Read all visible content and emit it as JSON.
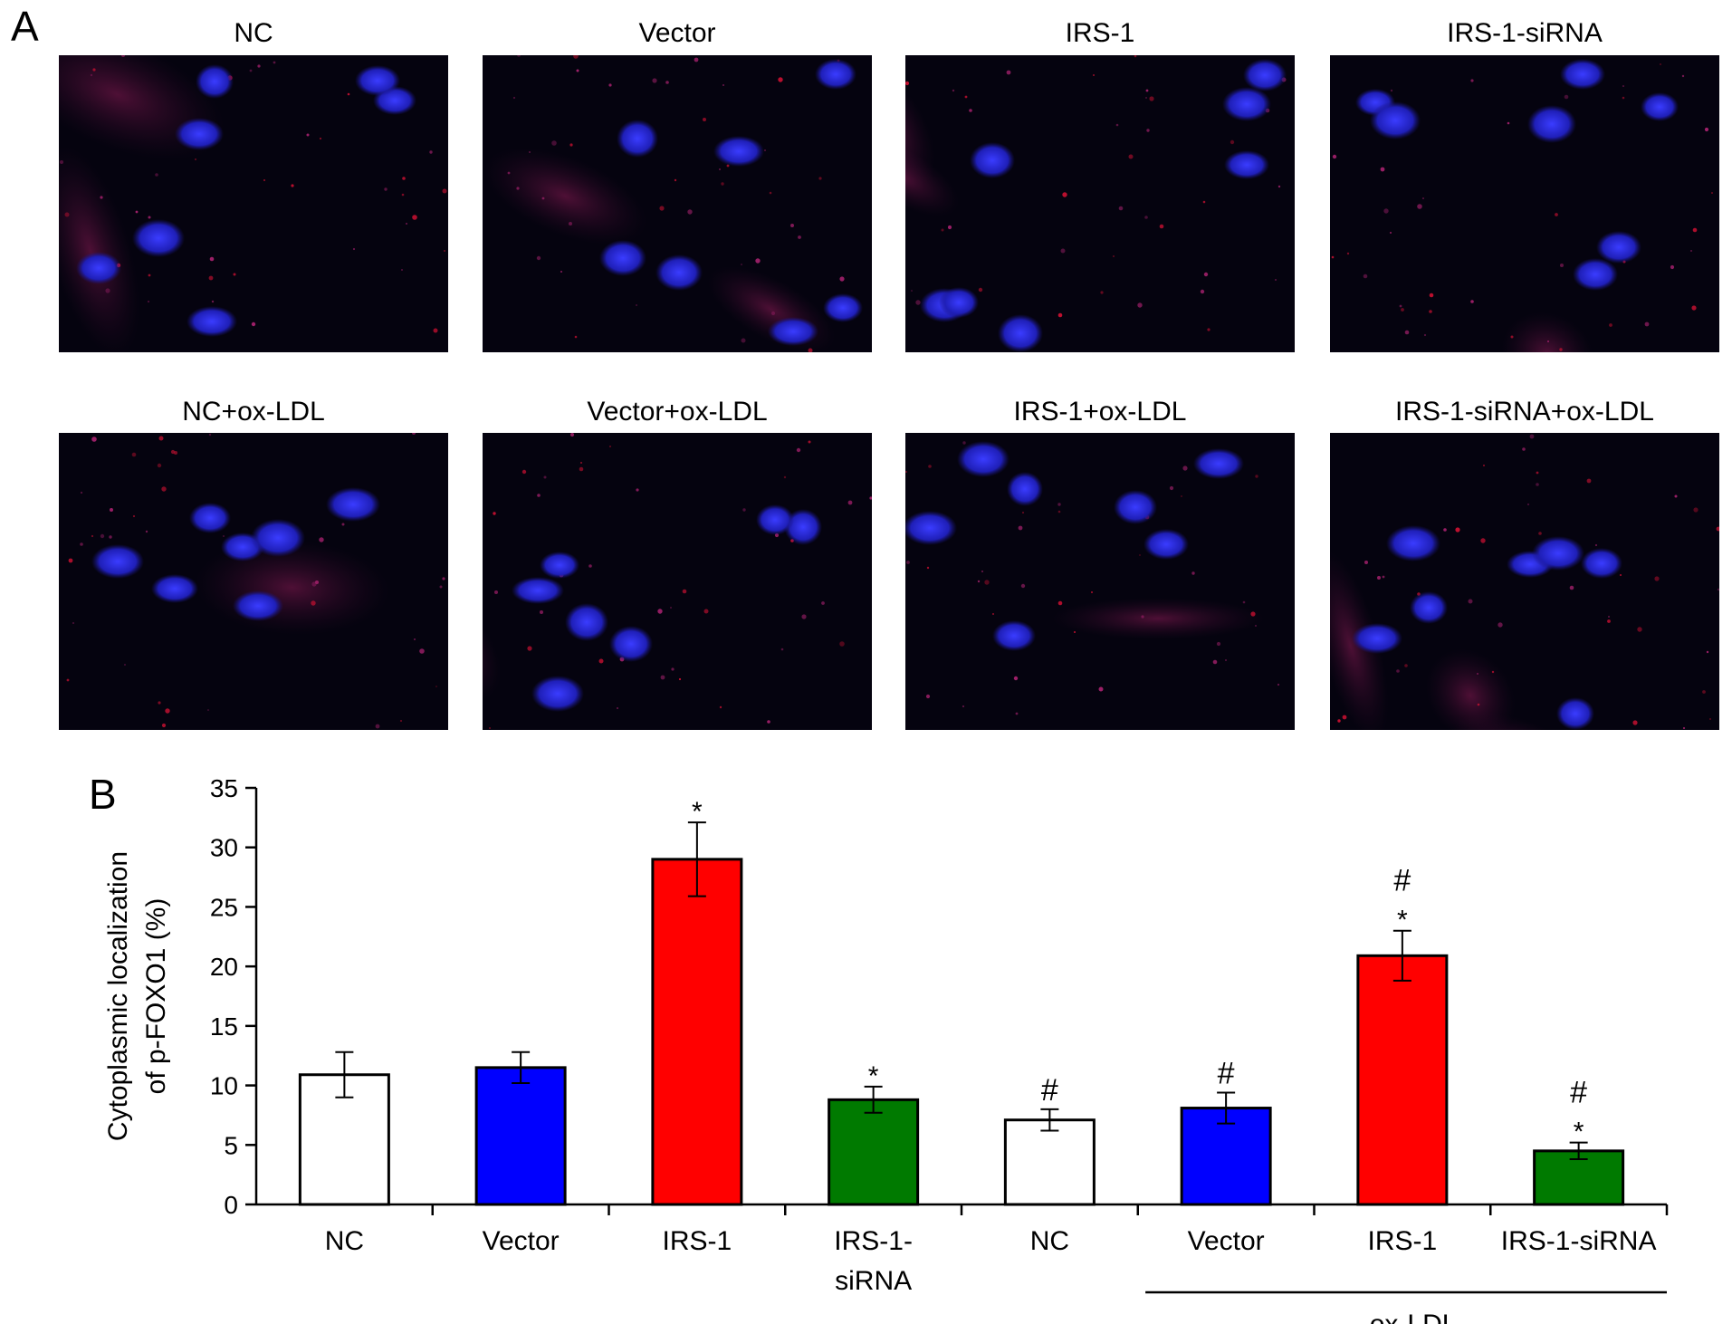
{
  "panel_a": {
    "letter": "A",
    "images": [
      {
        "title": "NC"
      },
      {
        "title": "Vector"
      },
      {
        "title": "IRS-1"
      },
      {
        "title": "IRS-1-siRNA"
      },
      {
        "title": "NC+ox-LDL"
      },
      {
        "title": "Vector+ox-LDL"
      },
      {
        "title": "IRS-1+ox-LDL"
      },
      {
        "title": "IRS-1-siRNA+ox-LDL"
      }
    ]
  },
  "panel_b": {
    "letter": "B"
  },
  "chart_data": {
    "type": "bar",
    "categories": [
      "NC",
      "Vector",
      "IRS-1",
      "IRS-1-siRNA",
      "NC",
      "Vector",
      "IRS-1",
      "IRS-1-siRNA"
    ],
    "category_lines": [
      [
        "NC"
      ],
      [
        "Vector"
      ],
      [
        "IRS-1"
      ],
      [
        "IRS-1-",
        "siRNA"
      ],
      [
        "NC"
      ],
      [
        "Vector"
      ],
      [
        "IRS-1"
      ],
      [
        "IRS-1-siRNA"
      ]
    ],
    "values": [
      10.9,
      11.5,
      29.0,
      8.8,
      7.1,
      8.1,
      20.9,
      4.5
    ],
    "errors": [
      1.9,
      1.3,
      3.1,
      1.1,
      0.9,
      1.3,
      2.1,
      0.7
    ],
    "colors": [
      "#ffffff",
      "#0000ff",
      "#ff0000",
      "#007a00",
      "#ffffff",
      "#0000ff",
      "#ff0000",
      "#007a00"
    ],
    "annotations": [
      [],
      [],
      [
        "*"
      ],
      [
        "*"
      ],
      [
        "#"
      ],
      [
        "#"
      ],
      [
        "#",
        "*"
      ],
      [
        "#",
        "*"
      ]
    ],
    "ylabel_lines": [
      "Cytoplasmic localization",
      "of p-FOXO1 (%)"
    ],
    "ylim": [
      0,
      35
    ],
    "yticks": [
      0,
      5,
      10,
      15,
      20,
      25,
      30,
      35
    ],
    "group_label": "ox-LDL",
    "group_start_index": 5,
    "group_end_index": 7,
    "grid": false,
    "legend": "none"
  }
}
